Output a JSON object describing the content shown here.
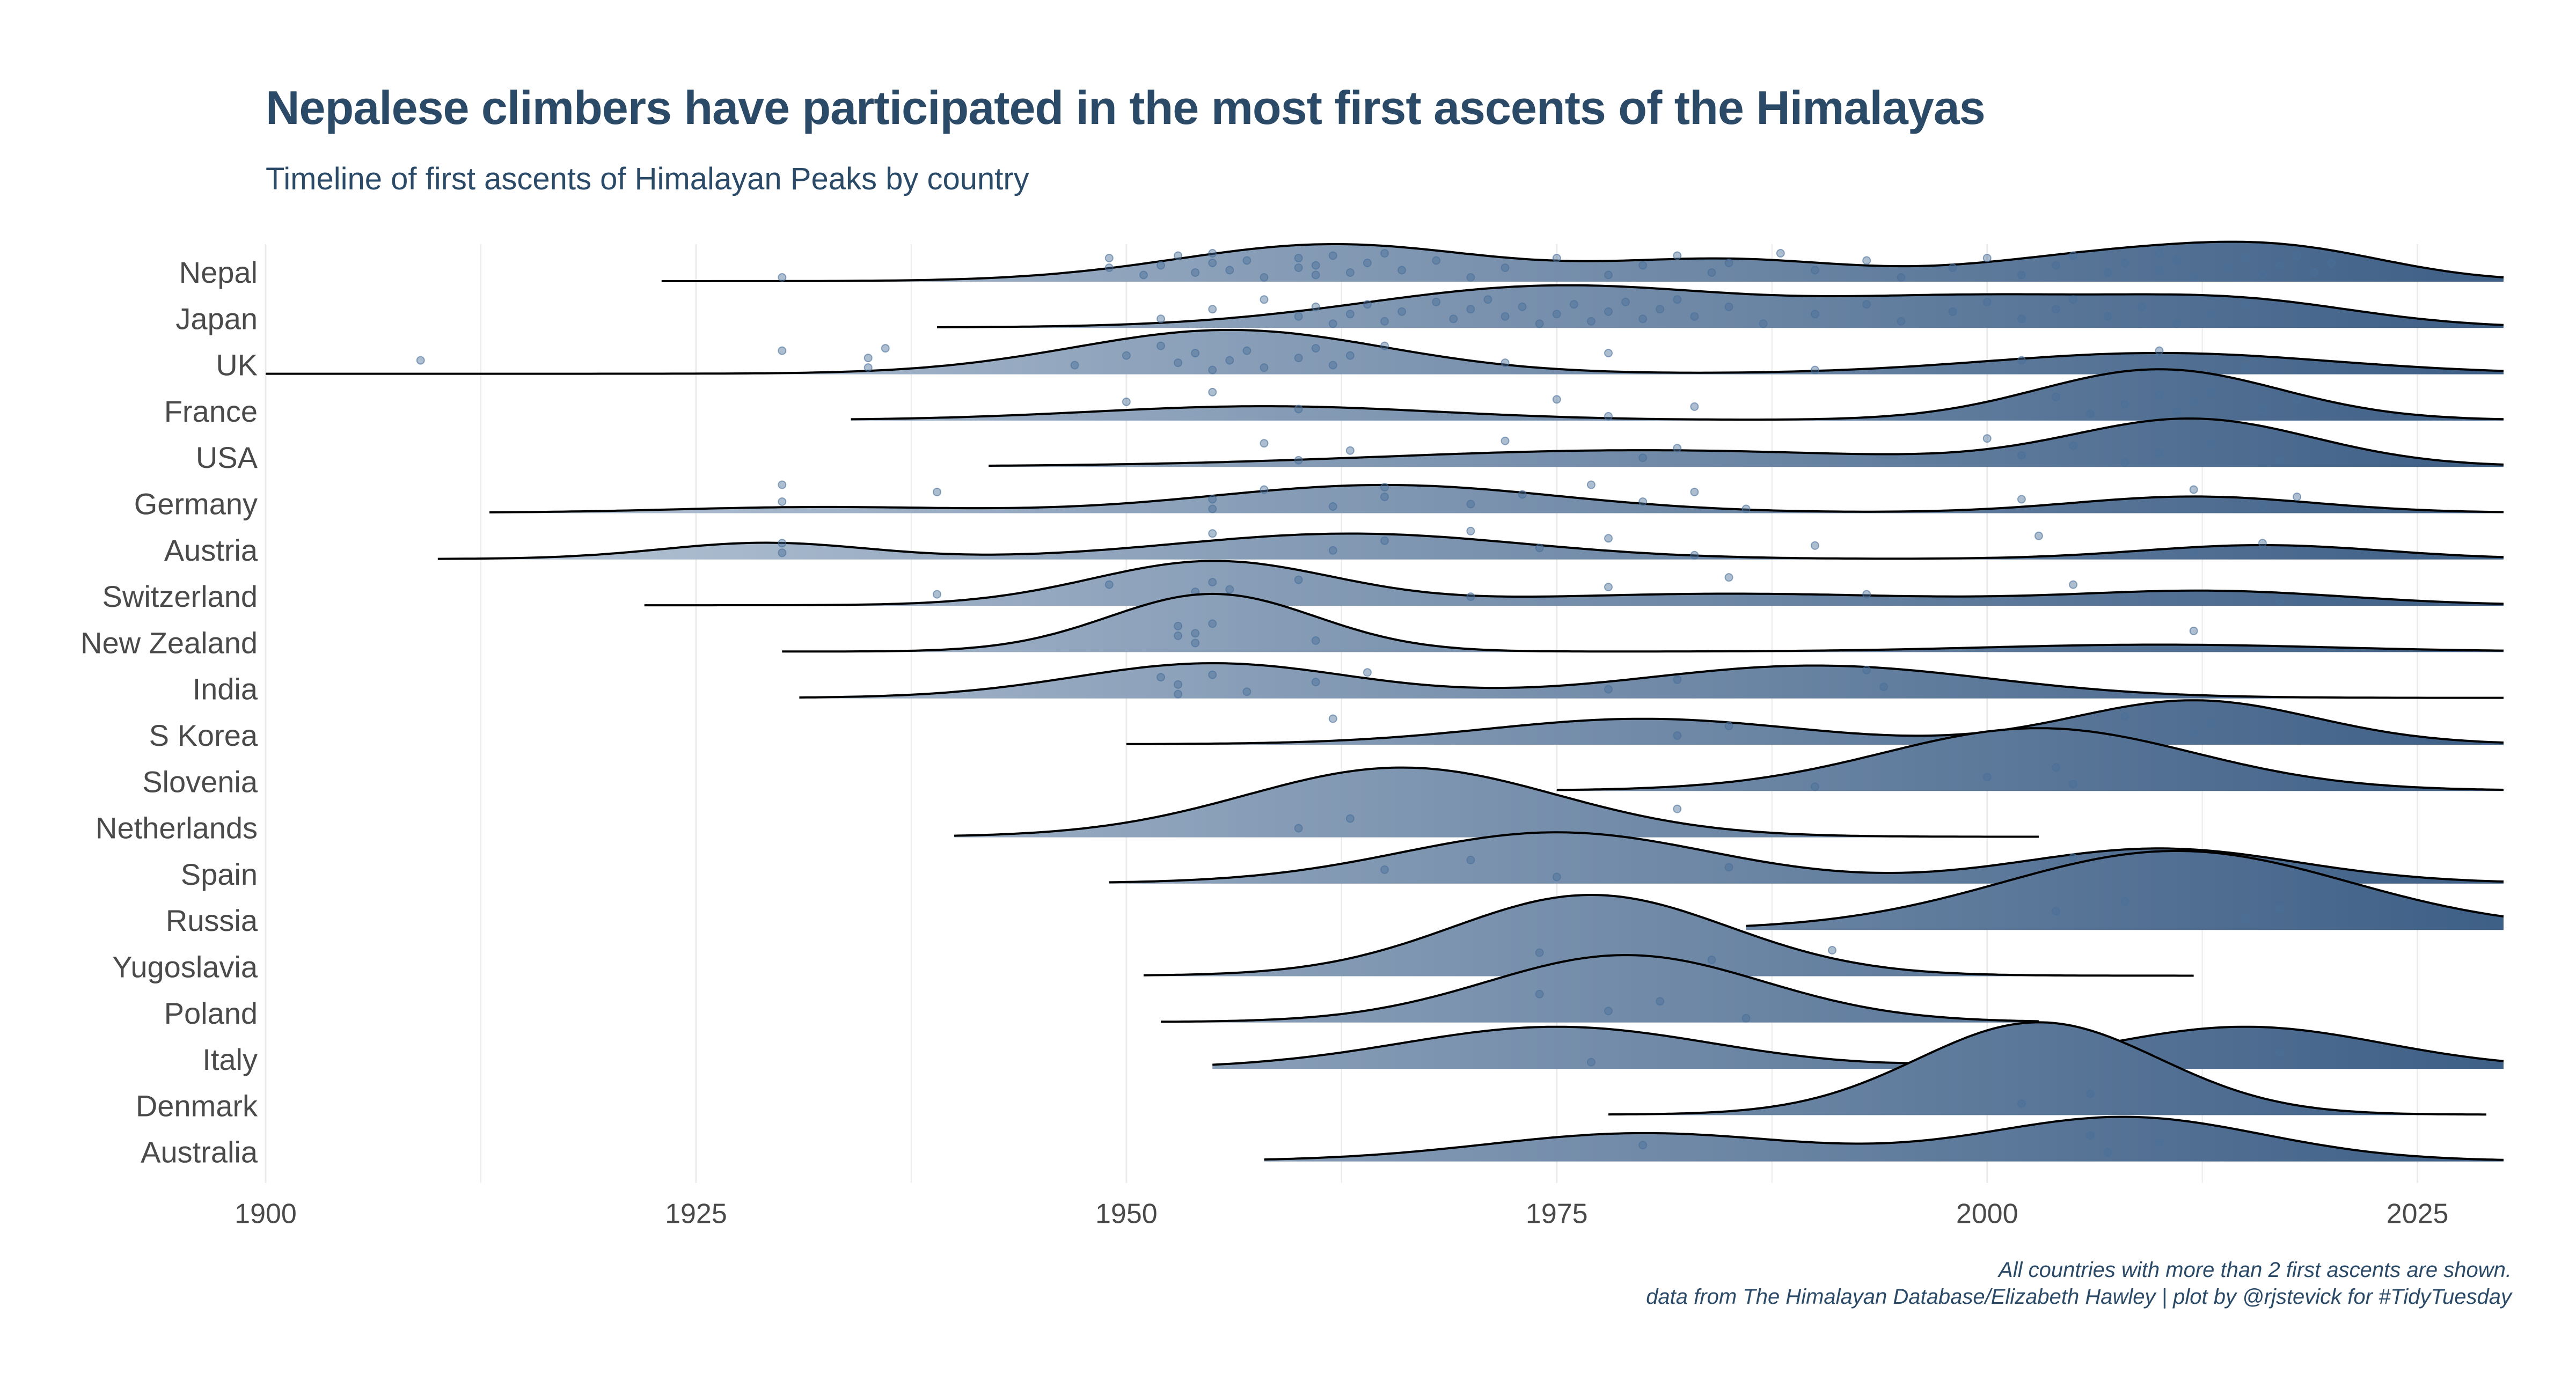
{
  "title": "Nepalese climbers have participated in the most first ascents of the Himalayas",
  "subtitle": "Timeline of first ascents of Himalayan Peaks by country",
  "caption": {
    "line1": "All countries with more than 2 first ascents are shown.",
    "line2": "data from The Himalayan Database/Elizabeth Hawley | plot by @rjstevick for #TidyTuesday"
  },
  "colors": {
    "light": "#c2cfde",
    "dark": "#3e5f86",
    "outline": "#000000",
    "point": "#4a6f9a",
    "grid": "#ebebeb"
  },
  "chart_data": {
    "type": "ridgeline",
    "xlim": [
      1900,
      2030
    ],
    "x_ticks": [
      1900,
      1925,
      1950,
      1975,
      2000,
      2025
    ],
    "grid": true,
    "legend": "none",
    "series": [
      {
        "name": "Nepal",
        "range": [
          1923,
          2030
        ],
        "peaks": [
          [
            1962,
            0.8,
            9
          ],
          [
            1985,
            0.45,
            7
          ],
          [
            2008,
            0.6,
            8
          ],
          [
            2018,
            0.5,
            6
          ]
        ],
        "points": [
          1930,
          1949,
          1949,
          1951,
          1952,
          1953,
          1954,
          1955,
          1955,
          1956,
          1957,
          1958,
          1960,
          1960,
          1961,
          1961,
          1962,
          1963,
          1964,
          1965,
          1966,
          1968,
          1970,
          1972,
          1975,
          1978,
          1980,
          1982,
          1984,
          1985,
          1988,
          1990,
          1993,
          1995,
          1998,
          2000,
          2002,
          2004,
          2005,
          2007,
          2008,
          2010,
          2010,
          2011,
          2012,
          2014,
          2015,
          2016,
          2017,
          2018,
          2019,
          2020
        ]
      },
      {
        "name": "Japan",
        "range": [
          1939,
          2030
        ],
        "peaks": [
          [
            1975,
            0.9,
            11
          ],
          [
            2000,
            0.6,
            9
          ],
          [
            2015,
            0.5,
            7
          ]
        ],
        "points": [
          1952,
          1955,
          1958,
          1960,
          1961,
          1962,
          1963,
          1964,
          1965,
          1966,
          1968,
          1969,
          1970,
          1971,
          1972,
          1973,
          1974,
          1975,
          1976,
          1977,
          1978,
          1979,
          1980,
          1981,
          1982,
          1983,
          1985,
          1987,
          1990,
          1993,
          1995,
          1998,
          2000,
          2002,
          2004,
          2005,
          2007,
          2009,
          2011,
          2013,
          2015
        ]
      },
      {
        "name": "UK",
        "range": [
          1900,
          2030
        ],
        "peaks": [
          [
            1956,
            0.95,
            9
          ],
          [
            2010,
            0.45,
            10
          ]
        ],
        "points": [
          1909,
          1930,
          1935,
          1935,
          1936,
          1947,
          1950,
          1952,
          1953,
          1954,
          1955,
          1956,
          1957,
          1958,
          1960,
          1961,
          1962,
          1963,
          1965,
          1972,
          1978,
          1990,
          2002,
          2010,
          2015
        ]
      },
      {
        "name": "France",
        "range": [
          1934,
          2030
        ],
        "peaks": [
          [
            1958,
            0.3,
            10
          ],
          [
            2010,
            1.1,
            7
          ]
        ],
        "points": [
          1950,
          1955,
          1960,
          1975,
          1978,
          1983,
          2004,
          2006,
          2008,
          2010,
          2011,
          2012,
          2013,
          2016,
          2018
        ]
      },
      {
        "name": "USA",
        "range": [
          1942,
          2030
        ],
        "peaks": [
          [
            1980,
            0.35,
            15
          ],
          [
            2012,
            1.0,
            7
          ]
        ],
        "points": [
          1958,
          1960,
          1963,
          1972,
          1980,
          1982,
          2000,
          2002,
          2005,
          2008,
          2010,
          2013,
          2017
        ]
      },
      {
        "name": "Germany",
        "range": [
          1913,
          2030
        ],
        "peaks": [
          [
            1932,
            0.12,
            8
          ],
          [
            1965,
            0.6,
            10
          ],
          [
            2012,
            0.35,
            7
          ]
        ],
        "points": [
          1930,
          1930,
          1939,
          1955,
          1955,
          1958,
          1962,
          1965,
          1965,
          1970,
          1973,
          1977,
          1980,
          1983,
          1986,
          2002,
          2012,
          2016,
          2018
        ]
      },
      {
        "name": "Austria",
        "range": [
          1910,
          2030
        ],
        "peaks": [
          [
            1929,
            0.35,
            6
          ],
          [
            1963,
            0.55,
            10
          ],
          [
            2016,
            0.3,
            7
          ]
        ],
        "points": [
          1930,
          1930,
          1955,
          1962,
          1965,
          1970,
          1974,
          1978,
          1983,
          1990,
          2003,
          2012,
          2016
        ]
      },
      {
        "name": "Switzerland",
        "range": [
          1922,
          2030
        ],
        "peaks": [
          [
            1955,
            0.95,
            7
          ],
          [
            1985,
            0.25,
            12
          ],
          [
            2013,
            0.3,
            8
          ]
        ],
        "points": [
          1939,
          1949,
          1953,
          1954,
          1955,
          1955,
          1956,
          1960,
          1970,
          1978,
          1985,
          1993,
          2005,
          2017
        ]
      },
      {
        "name": "New Zealand",
        "range": [
          1930,
          2030
        ],
        "peaks": [
          [
            1955,
            1.25,
            6
          ],
          [
            2010,
            0.15,
            10
          ]
        ],
        "points": [
          1953,
          1953,
          1954,
          1954,
          1955,
          1961,
          2012
        ]
      },
      {
        "name": "India",
        "range": [
          1931,
          2030
        ],
        "peaks": [
          [
            1955,
            0.75,
            8
          ],
          [
            1990,
            0.7,
            10
          ]
        ],
        "points": [
          1952,
          1953,
          1953,
          1955,
          1957,
          1961,
          1964,
          1978,
          1982,
          1993,
          1994
        ]
      },
      {
        "name": "S Korea",
        "range": [
          1950,
          2030
        ],
        "peaks": [
          [
            1980,
            0.55,
            9
          ],
          [
            2012,
            0.95,
            7
          ]
        ],
        "points": [
          1962,
          1982,
          1985,
          2008,
          2012,
          2013
        ]
      },
      {
        "name": "Slovenia",
        "range": [
          1975,
          2030
        ],
        "peaks": [
          [
            2003,
            1.35,
            9
          ]
        ],
        "points": [
          1990,
          2000,
          2004,
          2005
        ]
      },
      {
        "name": "Netherlands",
        "range": [
          1940,
          2003
        ],
        "peaks": [
          [
            1966,
            1.5,
            9
          ]
        ],
        "points": [
          1960,
          1963,
          1982
        ]
      },
      {
        "name": "Spain",
        "range": [
          1949,
          2030
        ],
        "peaks": [
          [
            1975,
            1.1,
            9
          ],
          [
            2010,
            0.75,
            8
          ]
        ],
        "points": [
          1965,
          1970,
          1975,
          1985,
          2005
        ]
      },
      {
        "name": "Russia",
        "range": [
          1986,
          2030
        ],
        "peaks": [
          [
            2011,
            1.7,
            10
          ]
        ],
        "points": [
          2004,
          2008,
          2015,
          2017
        ]
      },
      {
        "name": "Yugoslavia",
        "range": [
          1951,
          2012
        ],
        "peaks": [
          [
            1977,
            1.75,
            8
          ]
        ],
        "points": [
          1974,
          1978,
          1984,
          1991
        ]
      },
      {
        "name": "Poland",
        "range": [
          1952,
          2003
        ],
        "peaks": [
          [
            1979,
            1.45,
            8
          ]
        ],
        "points": [
          1974,
          1978,
          1981,
          1986
        ]
      },
      {
        "name": "Italy",
        "range": [
          1955,
          2030
        ],
        "peaks": [
          [
            1975,
            0.9,
            9
          ],
          [
            2015,
            0.9,
            8
          ]
        ],
        "points": [
          1977,
          2017
        ]
      },
      {
        "name": "Denmark",
        "range": [
          1978,
          2029
        ],
        "peaks": [
          [
            2003,
            2.0,
            7
          ]
        ],
        "points": [
          2002,
          2006
        ]
      },
      {
        "name": "Australia",
        "range": [
          1958,
          2030
        ],
        "peaks": [
          [
            1980,
            0.6,
            9
          ],
          [
            2008,
            0.95,
            8
          ]
        ],
        "points": [
          1980,
          2006,
          2007,
          2010
        ]
      }
    ]
  }
}
